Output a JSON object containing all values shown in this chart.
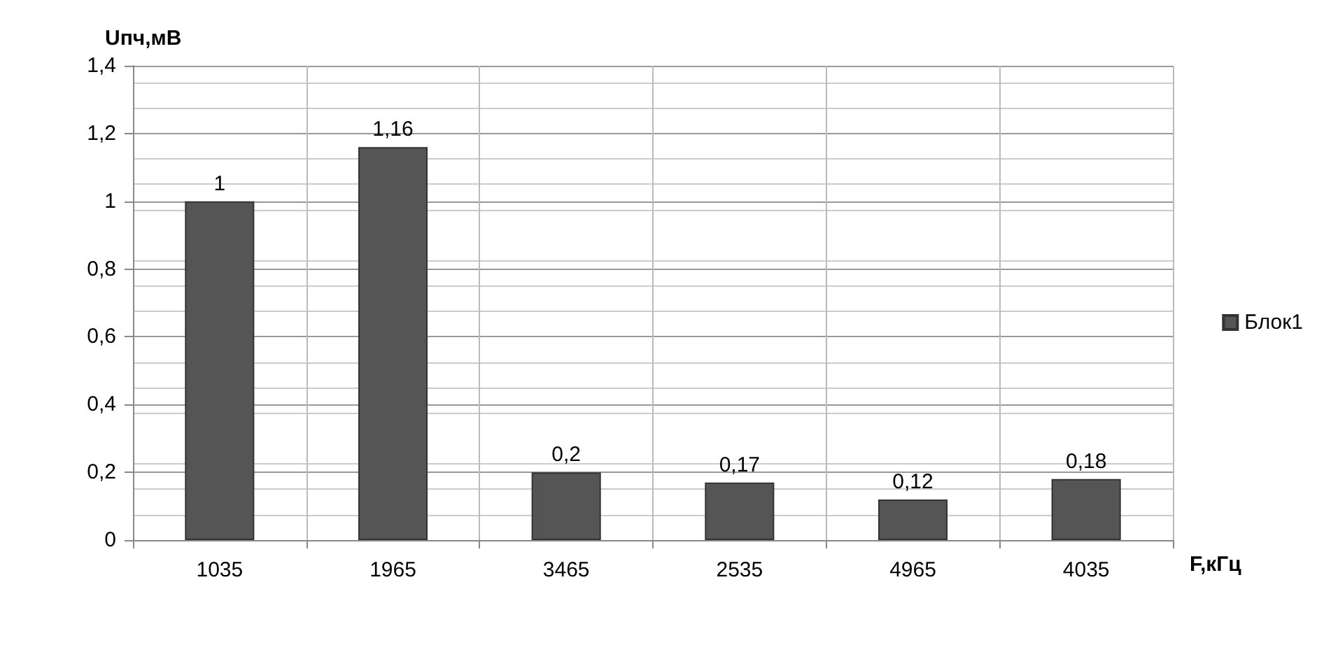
{
  "chart_data": {
    "type": "bar",
    "xlabel": "F,кГц",
    "ylabel": "Uпч,мВ",
    "categories": [
      "1035",
      "1965",
      "3465",
      "2535",
      "4965",
      "4035"
    ],
    "series": [
      {
        "name": "Блок1",
        "color": "#555555",
        "values": [
          1,
          1.16,
          0.2,
          0.17,
          0.12,
          0.18
        ],
        "value_labels": [
          "1",
          "1,16",
          "0,2",
          "0,17",
          "0,12",
          "0,18"
        ]
      }
    ],
    "ylim": [
      0,
      1.4
    ],
    "yticks": [
      0,
      {
        "value": 0.2,
        "label": "0,2"
      },
      {
        "value": 0.4,
        "label": "0,4"
      },
      {
        "value": 0.6,
        "label": "0,6"
      },
      {
        "value": 0.8,
        "label": "0,8"
      },
      1,
      {
        "value": 1.2,
        "label": "1,2"
      },
      {
        "value": 1.4,
        "label": "1,4"
      }
    ],
    "grid": true,
    "legend": "right"
  }
}
